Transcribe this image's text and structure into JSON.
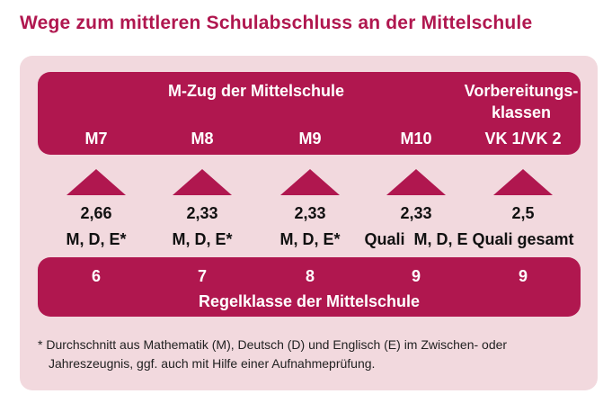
{
  "title": "Wege zum mittleren Schulabschluss an der Mittelschule",
  "top_band": {
    "mzug_label": "M-Zug der Mittelschule",
    "vk_label_line1": "Vorbereitungs-",
    "vk_label_line2": "klassen",
    "columns": [
      "M7",
      "M8",
      "M9",
      "M10",
      "VK 1/VK 2"
    ]
  },
  "requirements": [
    {
      "grade": "2,66",
      "subjects": "M, D, E*"
    },
    {
      "grade": "2,33",
      "subjects": "M, D, E*"
    },
    {
      "grade": "2,33",
      "subjects": "M, D, E*"
    },
    {
      "grade": "2,33",
      "subjects": "Quali  M, D, E"
    },
    {
      "grade": "2,5",
      "subjects": "Quali gesamt"
    }
  ],
  "bottom_band": {
    "columns": [
      "6",
      "7",
      "8",
      "9",
      "9"
    ],
    "label": "Regelklasse der Mittelschule"
  },
  "footnote": {
    "line1": "* Durchschnitt aus Mathematik (M), Deutsch (D) und Englisch (E) im Zwischen- oder",
    "line2": "Jahreszeugnis, ggf. auch mit Hilfe einer Aufnahmeprüfung."
  },
  "colors": {
    "accent": "#b0174f",
    "panel": "#f2d9de"
  }
}
